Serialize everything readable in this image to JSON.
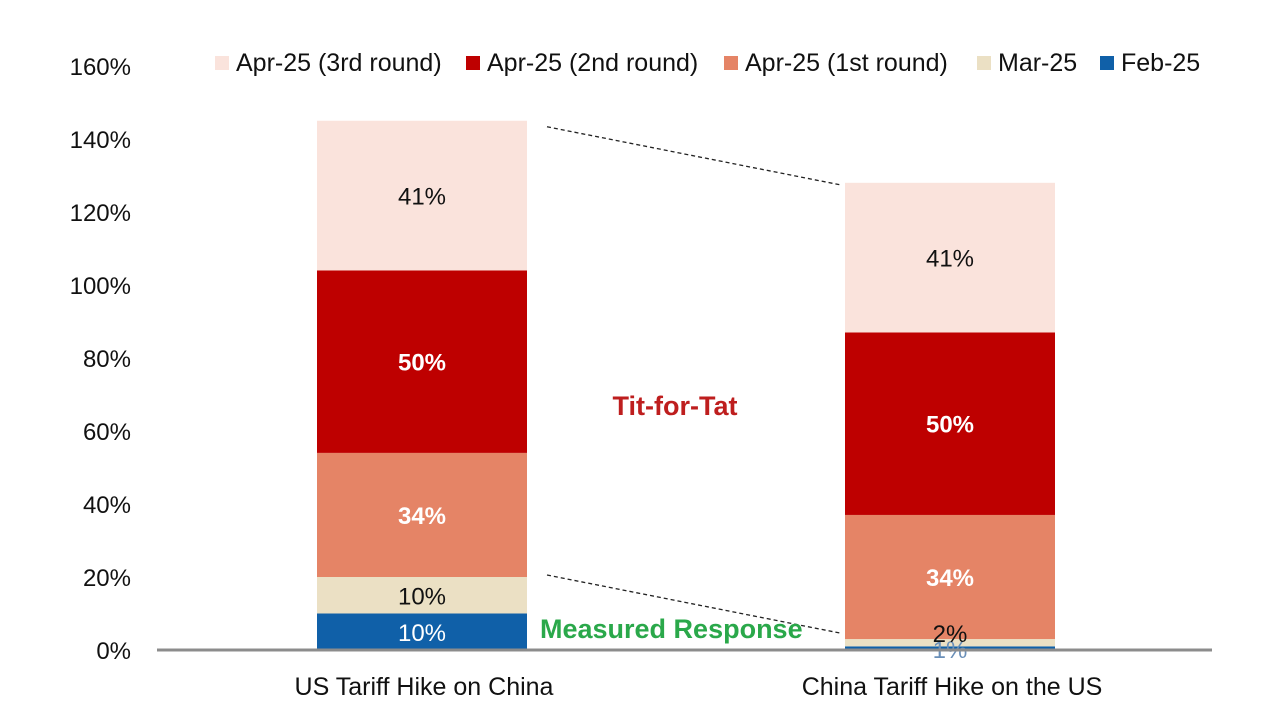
{
  "chart_data": {
    "type": "bar",
    "stacked": true,
    "title": "",
    "xlabel": "",
    "ylabel": "",
    "ylim": [
      0,
      1.6
    ],
    "y_ticks": [
      "0%",
      "20%",
      "40%",
      "60%",
      "80%",
      "100%",
      "120%",
      "140%",
      "160%"
    ],
    "categories": [
      "US Tariff Hike on China",
      "China Tariff Hike on the US"
    ],
    "series": [
      {
        "name": "Feb-25",
        "color": "#1060a8",
        "values": [
          0.1,
          0.01
        ],
        "labels": [
          "10%",
          "1%"
        ],
        "label_color": "#ffffff"
      },
      {
        "name": "Mar-25",
        "color": "#ebe0c4",
        "values": [
          0.1,
          0.02
        ],
        "labels": [
          "10%",
          "2%"
        ],
        "label_color": "#111111"
      },
      {
        "name": "Apr-25 (1st round)",
        "color": "#e58466",
        "values": [
          0.34,
          0.34
        ],
        "labels": [
          "34%",
          "34%"
        ],
        "label_color": "#ffffff"
      },
      {
        "name": "Apr-25 (2nd round)",
        "color": "#be0000",
        "values": [
          0.5,
          0.5
        ],
        "labels": [
          "50%",
          "50%"
        ],
        "label_color": "#ffffff"
      },
      {
        "name": "Apr-25 (3rd round)",
        "color": "#fae3dc",
        "values": [
          0.41,
          0.41
        ],
        "labels": [
          "41%",
          "41%"
        ],
        "label_color": "#111111"
      }
    ],
    "legend_order": [
      "Apr-25 (3rd round)",
      "Apr-25 (2nd round)",
      "Apr-25 (1st round)",
      "Mar-25",
      "Feb-25"
    ],
    "legend_position": "top",
    "grid": false,
    "annotations": [
      {
        "text": "Tit-for-Tat",
        "color": "#be1e1e"
      },
      {
        "text": "Measured Response",
        "color": "#2aa84a"
      }
    ]
  }
}
